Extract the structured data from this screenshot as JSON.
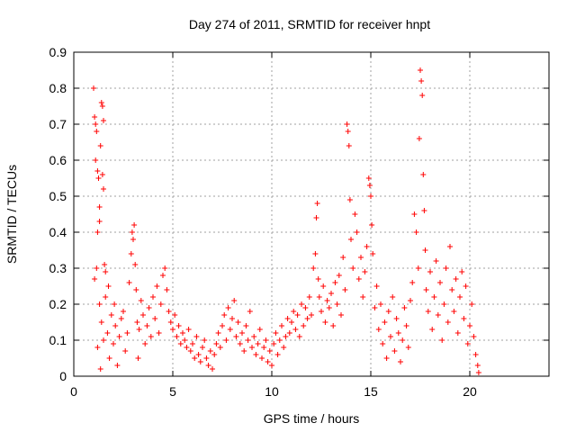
{
  "chart_data": {
    "type": "scatter",
    "title": "Day 274 of 2011, SRMTID for receiver hnpt",
    "xlabel": "GPS time / hours",
    "ylabel": "SRMTID / TECUs",
    "xlim": [
      0,
      24
    ],
    "ylim": [
      0,
      0.9
    ],
    "xticks": [
      0,
      5,
      10,
      15,
      20
    ],
    "yticks": [
      0,
      0.1,
      0.2,
      0.3,
      0.4,
      0.5,
      0.6,
      0.7,
      0.8,
      0.9
    ],
    "xtick_labels": [
      "0",
      "5",
      "10",
      "15",
      "20"
    ],
    "ytick_labels": [
      "0",
      "0.1",
      "0.2",
      "0.3",
      "0.4",
      "0.5",
      "0.6",
      "0.7",
      "0.8",
      "0.9"
    ],
    "grid": true,
    "marker": "+",
    "marker_color": "#ff0000",
    "series": [
      {
        "name": "SRMTID",
        "points": [
          [
            1.0,
            0.8
          ],
          [
            1.05,
            0.72
          ],
          [
            1.1,
            0.7
          ],
          [
            1.15,
            0.68
          ],
          [
            1.2,
            0.57
          ],
          [
            1.25,
            0.55
          ],
          [
            1.3,
            0.47
          ],
          [
            1.1,
            0.6
          ],
          [
            1.2,
            0.4
          ],
          [
            1.05,
            0.27
          ],
          [
            1.15,
            0.3
          ],
          [
            1.3,
            0.43
          ],
          [
            1.35,
            0.64
          ],
          [
            1.4,
            0.76
          ],
          [
            1.45,
            0.75
          ],
          [
            1.5,
            0.71
          ],
          [
            1.45,
            0.56
          ],
          [
            1.5,
            0.52
          ],
          [
            1.55,
            0.31
          ],
          [
            1.6,
            0.29
          ],
          [
            1.3,
            0.2
          ],
          [
            1.4,
            0.15
          ],
          [
            1.5,
            0.1
          ],
          [
            1.6,
            0.22
          ],
          [
            1.7,
            0.12
          ],
          [
            1.8,
            0.05
          ],
          [
            1.9,
            0.17
          ],
          [
            2.0,
            0.09
          ],
          [
            2.1,
            0.14
          ],
          [
            2.2,
            0.03
          ],
          [
            1.2,
            0.08
          ],
          [
            1.35,
            0.02
          ],
          [
            1.75,
            0.25
          ],
          [
            2.05,
            0.2
          ],
          [
            2.3,
            0.11
          ],
          [
            2.4,
            0.16
          ],
          [
            2.5,
            0.18
          ],
          [
            2.6,
            0.07
          ],
          [
            2.7,
            0.12
          ],
          [
            2.8,
            0.26
          ],
          [
            2.9,
            0.34
          ],
          [
            3.0,
            0.38
          ],
          [
            3.05,
            0.42
          ],
          [
            2.95,
            0.4
          ],
          [
            3.1,
            0.31
          ],
          [
            3.15,
            0.24
          ],
          [
            3.2,
            0.15
          ],
          [
            3.25,
            0.05
          ],
          [
            3.3,
            0.13
          ],
          [
            3.4,
            0.21
          ],
          [
            3.5,
            0.17
          ],
          [
            3.6,
            0.09
          ],
          [
            3.7,
            0.14
          ],
          [
            3.8,
            0.19
          ],
          [
            3.9,
            0.11
          ],
          [
            4.0,
            0.22
          ],
          [
            4.1,
            0.16
          ],
          [
            4.2,
            0.25
          ],
          [
            4.3,
            0.12
          ],
          [
            4.4,
            0.2
          ],
          [
            4.5,
            0.28
          ],
          [
            4.6,
            0.3
          ],
          [
            4.7,
            0.24
          ],
          [
            4.8,
            0.18
          ],
          [
            4.9,
            0.15
          ],
          [
            5.0,
            0.13
          ],
          [
            5.1,
            0.17
          ],
          [
            5.2,
            0.11
          ],
          [
            5.3,
            0.14
          ],
          [
            5.4,
            0.09
          ],
          [
            5.5,
            0.12
          ],
          [
            5.6,
            0.1
          ],
          [
            5.7,
            0.08
          ],
          [
            5.8,
            0.13
          ],
          [
            5.9,
            0.07
          ],
          [
            6.0,
            0.09
          ],
          [
            6.1,
            0.05
          ],
          [
            6.2,
            0.11
          ],
          [
            6.3,
            0.06
          ],
          [
            6.4,
            0.04
          ],
          [
            6.5,
            0.08
          ],
          [
            6.6,
            0.1
          ],
          [
            6.7,
            0.05
          ],
          [
            6.8,
            0.03
          ],
          [
            6.9,
            0.07
          ],
          [
            7.0,
            0.02
          ],
          [
            7.1,
            0.06
          ],
          [
            7.2,
            0.09
          ],
          [
            7.3,
            0.12
          ],
          [
            7.4,
            0.08
          ],
          [
            7.5,
            0.14
          ],
          [
            7.6,
            0.17
          ],
          [
            7.7,
            0.1
          ],
          [
            7.8,
            0.19
          ],
          [
            7.9,
            0.13
          ],
          [
            8.0,
            0.16
          ],
          [
            8.1,
            0.21
          ],
          [
            8.2,
            0.11
          ],
          [
            8.3,
            0.15
          ],
          [
            8.4,
            0.09
          ],
          [
            8.5,
            0.12
          ],
          [
            8.6,
            0.07
          ],
          [
            8.7,
            0.14
          ],
          [
            8.8,
            0.1
          ],
          [
            8.9,
            0.18
          ],
          [
            9.0,
            0.08
          ],
          [
            9.1,
            0.11
          ],
          [
            9.2,
            0.06
          ],
          [
            9.3,
            0.09
          ],
          [
            9.4,
            0.13
          ],
          [
            9.5,
            0.05
          ],
          [
            9.6,
            0.08
          ],
          [
            9.7,
            0.1
          ],
          [
            9.8,
            0.04
          ],
          [
            9.9,
            0.07
          ],
          [
            10.0,
            0.03
          ],
          [
            10.1,
            0.09
          ],
          [
            10.2,
            0.12
          ],
          [
            10.3,
            0.06
          ],
          [
            10.4,
            0.1
          ],
          [
            10.5,
            0.14
          ],
          [
            10.6,
            0.08
          ],
          [
            10.7,
            0.11
          ],
          [
            10.8,
            0.16
          ],
          [
            10.9,
            0.12
          ],
          [
            11.0,
            0.15
          ],
          [
            11.1,
            0.18
          ],
          [
            11.2,
            0.13
          ],
          [
            11.3,
            0.17
          ],
          [
            11.4,
            0.11
          ],
          [
            11.5,
            0.2
          ],
          [
            11.6,
            0.14
          ],
          [
            11.7,
            0.19
          ],
          [
            11.8,
            0.16
          ],
          [
            11.9,
            0.22
          ],
          [
            12.0,
            0.17
          ],
          [
            12.1,
            0.3
          ],
          [
            12.2,
            0.34
          ],
          [
            12.3,
            0.48
          ],
          [
            12.25,
            0.44
          ],
          [
            12.35,
            0.27
          ],
          [
            12.4,
            0.22
          ],
          [
            12.5,
            0.18
          ],
          [
            12.6,
            0.25
          ],
          [
            12.7,
            0.15
          ],
          [
            12.8,
            0.21
          ],
          [
            12.9,
            0.19
          ],
          [
            13.0,
            0.23
          ],
          [
            13.1,
            0.14
          ],
          [
            13.2,
            0.26
          ],
          [
            13.3,
            0.2
          ],
          [
            13.4,
            0.28
          ],
          [
            13.5,
            0.17
          ],
          [
            13.6,
            0.33
          ],
          [
            13.7,
            0.24
          ],
          [
            13.8,
            0.7
          ],
          [
            13.85,
            0.68
          ],
          [
            13.9,
            0.64
          ],
          [
            13.95,
            0.49
          ],
          [
            14.0,
            0.38
          ],
          [
            14.1,
            0.3
          ],
          [
            14.2,
            0.45
          ],
          [
            14.3,
            0.4
          ],
          [
            14.4,
            0.27
          ],
          [
            14.5,
            0.33
          ],
          [
            14.6,
            0.22
          ],
          [
            14.7,
            0.29
          ],
          [
            14.8,
            0.36
          ],
          [
            14.9,
            0.55
          ],
          [
            14.95,
            0.53
          ],
          [
            15.0,
            0.5
          ],
          [
            15.05,
            0.42
          ],
          [
            15.1,
            0.34
          ],
          [
            15.2,
            0.19
          ],
          [
            15.3,
            0.25
          ],
          [
            15.4,
            0.13
          ],
          [
            15.5,
            0.2
          ],
          [
            15.6,
            0.09
          ],
          [
            15.7,
            0.15
          ],
          [
            15.8,
            0.05
          ],
          [
            15.9,
            0.18
          ],
          [
            16.0,
            0.11
          ],
          [
            16.1,
            0.22
          ],
          [
            16.2,
            0.07
          ],
          [
            16.3,
            0.16
          ],
          [
            16.4,
            0.12
          ],
          [
            16.5,
            0.04
          ],
          [
            16.6,
            0.1
          ],
          [
            16.7,
            0.19
          ],
          [
            16.8,
            0.14
          ],
          [
            16.9,
            0.08
          ],
          [
            17.0,
            0.21
          ],
          [
            17.1,
            0.26
          ],
          [
            17.2,
            0.45
          ],
          [
            17.3,
            0.4
          ],
          [
            17.4,
            0.3
          ],
          [
            17.45,
            0.66
          ],
          [
            17.5,
            0.85
          ],
          [
            17.55,
            0.82
          ],
          [
            17.6,
            0.78
          ],
          [
            17.65,
            0.56
          ],
          [
            17.7,
            0.46
          ],
          [
            17.75,
            0.35
          ],
          [
            17.8,
            0.24
          ],
          [
            17.9,
            0.18
          ],
          [
            18.0,
            0.29
          ],
          [
            18.1,
            0.13
          ],
          [
            18.2,
            0.22
          ],
          [
            18.3,
            0.32
          ],
          [
            18.4,
            0.17
          ],
          [
            18.5,
            0.26
          ],
          [
            18.6,
            0.1
          ],
          [
            18.7,
            0.2
          ],
          [
            18.8,
            0.3
          ],
          [
            18.9,
            0.15
          ],
          [
            19.0,
            0.36
          ],
          [
            19.1,
            0.24
          ],
          [
            19.2,
            0.18
          ],
          [
            19.3,
            0.27
          ],
          [
            19.4,
            0.12
          ],
          [
            19.5,
            0.22
          ],
          [
            19.6,
            0.29
          ],
          [
            19.7,
            0.16
          ],
          [
            19.8,
            0.25
          ],
          [
            19.9,
            0.09
          ],
          [
            20.0,
            0.14
          ],
          [
            20.1,
            0.2
          ],
          [
            20.2,
            0.11
          ],
          [
            20.3,
            0.06
          ],
          [
            20.4,
            0.03
          ],
          [
            20.45,
            0.01
          ]
        ]
      }
    ]
  }
}
